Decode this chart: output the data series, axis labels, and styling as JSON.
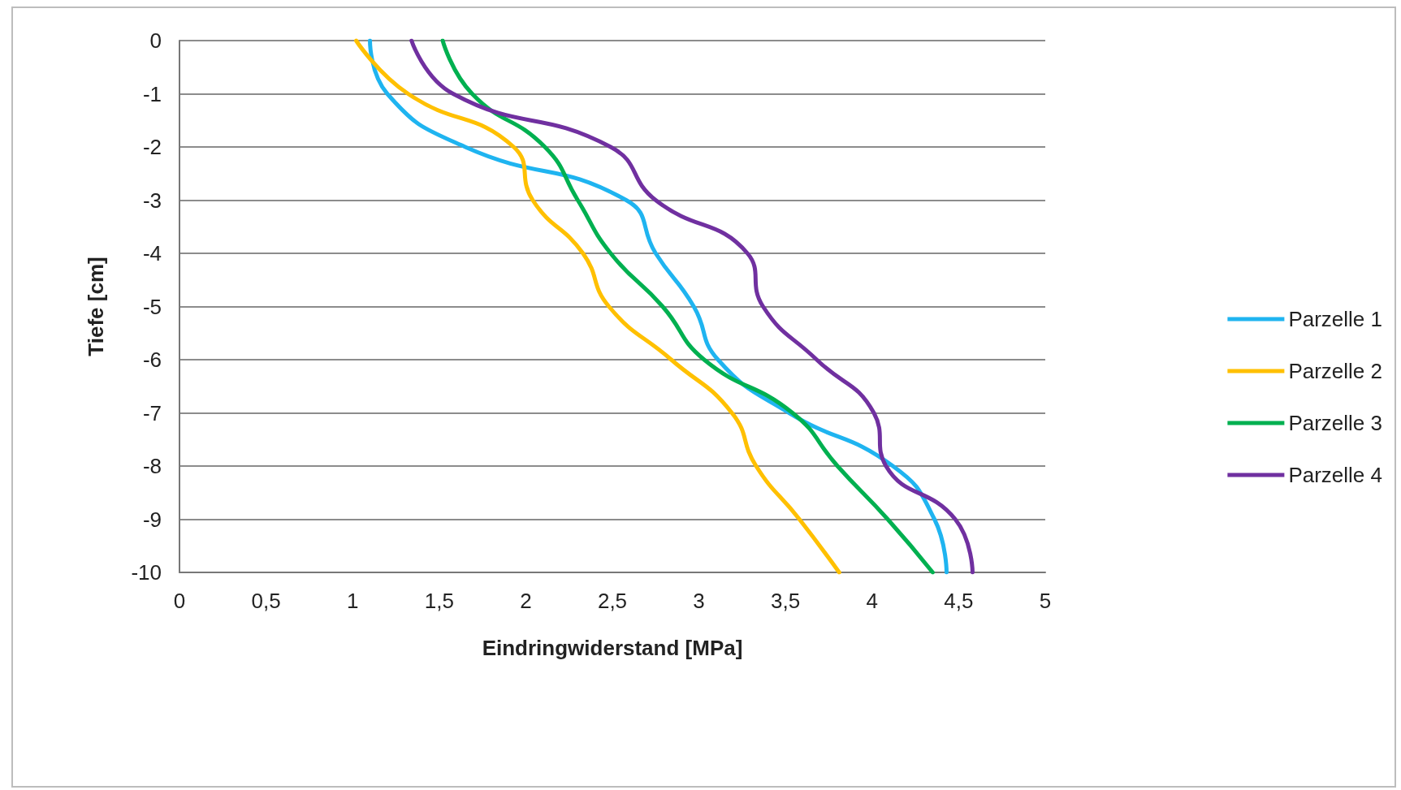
{
  "chart_data": {
    "type": "line",
    "xlabel": "Eindringwiderstand [MPa]",
    "ylabel": "Tiefe [cm]",
    "xlim": [
      0,
      5
    ],
    "xticks": [
      0,
      {
        "value": 0.5,
        "label": "0,5"
      },
      1,
      {
        "value": 1.5,
        "label": "1,5"
      },
      2,
      {
        "value": 2.5,
        "label": "2,5"
      },
      3,
      {
        "value": 3.5,
        "label": "3,5"
      },
      4,
      {
        "value": 4.5,
        "label": "4,5"
      },
      5
    ],
    "ylim": [
      -10,
      0
    ],
    "yticks": [
      -10,
      -9,
      -8,
      -7,
      -6,
      -5,
      -4,
      -3,
      -2,
      -1,
      0
    ],
    "grid": "y",
    "legend": "right",
    "marker": "none",
    "line_style": "solid",
    "series": [
      {
        "name": "Parzelle 1",
        "color": "#1fb4f0",
        "x": [
          1.1,
          1.2,
          1.65,
          2.58,
          2.75,
          2.97,
          3.11,
          3.52,
          4.12,
          4.36,
          4.43
        ],
        "values": [
          0,
          -1,
          -2,
          -3,
          -4,
          -5,
          -6,
          -7,
          -8,
          -9,
          -10
        ]
      },
      {
        "name": "Parzelle 2",
        "color": "#ffc000",
        "x": [
          1.02,
          1.32,
          1.93,
          2.04,
          2.33,
          2.48,
          2.84,
          3.19,
          3.33,
          3.58,
          3.81
        ],
        "values": [
          0,
          -1,
          -2,
          -3,
          -4,
          -5,
          -6,
          -7,
          -8,
          -9,
          -10
        ]
      },
      {
        "name": "Parzelle 3",
        "color": "#00b050",
        "x": [
          1.52,
          1.69,
          2.11,
          2.3,
          2.49,
          2.79,
          3.03,
          3.54,
          3.8,
          4.09,
          4.35
        ],
        "values": [
          0,
          -1,
          -2,
          -3,
          -4,
          -5,
          -6,
          -7,
          -8,
          -9,
          -10
        ]
      },
      {
        "name": "Parzelle 4",
        "color": "#7030a0",
        "x": [
          1.34,
          1.58,
          2.49,
          2.75,
          3.28,
          3.37,
          3.68,
          4.01,
          4.08,
          4.48,
          4.58
        ],
        "values": [
          0,
          -1,
          -2,
          -3,
          -4,
          -5,
          -6,
          -7,
          -8,
          -9,
          -10
        ]
      }
    ]
  }
}
